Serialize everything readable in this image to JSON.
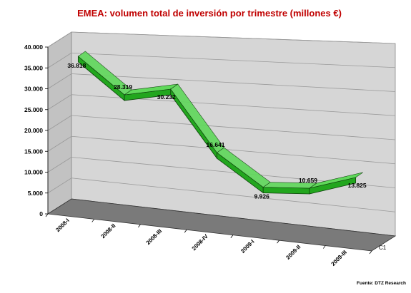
{
  "chart_data": {
    "type": "line",
    "style": "3d-ribbon",
    "title": "EMEA: volumen total de inversión por trimestre (millones €)",
    "categories": [
      "2008-I",
      "2008-II",
      "2008-III",
      "2008-IV",
      "2009-I",
      "2009-II",
      "2009-III"
    ],
    "series": [
      {
        "name": "C1",
        "values": [
          36818,
          28319,
          30232,
          16641,
          9926,
          10659,
          13825
        ]
      }
    ],
    "data_labels": [
      "36.818",
      "28.319",
      "30.232",
      "16.641",
      "9.926",
      "10.659",
      "13.825"
    ],
    "y_ticks": [
      "0",
      "5.000",
      "10.000",
      "15.000",
      "20.000",
      "25.000",
      "30.000",
      "35.000",
      "40.000"
    ],
    "ylim": [
      0,
      40000
    ],
    "ystep": 5000,
    "grid": true,
    "source": "Fuente: DTZ Research",
    "colors": {
      "title": "#c00000",
      "ribbon_front": "#22a61e",
      "ribbon_top": "#5fd85a",
      "ribbon_edge": "#0e3f0c",
      "back_wall": "#d6d6d6",
      "side_wall": "#c2c2c2",
      "floor": "#7a7a7a",
      "grid": "#9a9a9a"
    }
  }
}
